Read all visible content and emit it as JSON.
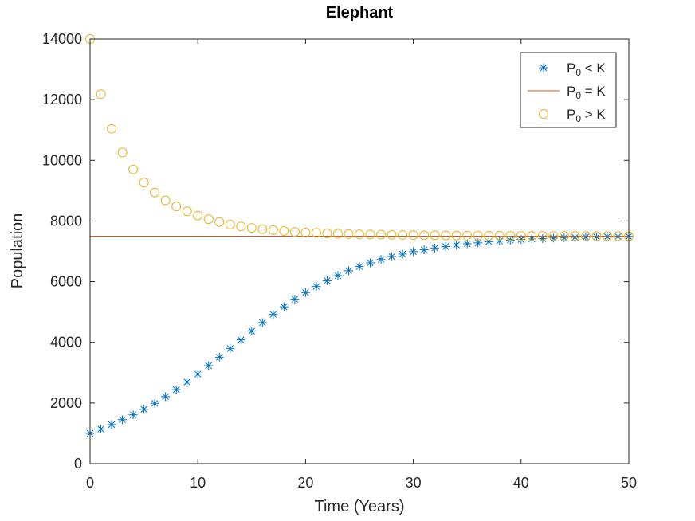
{
  "chart_data": {
    "type": "scatter",
    "title": "Elephant",
    "xlabel": "Time (Years)",
    "ylabel": "Population",
    "xlim": [
      0,
      50
    ],
    "ylim": [
      0,
      14000
    ],
    "xticks": [
      0,
      10,
      20,
      30,
      40,
      50
    ],
    "yticks": [
      0,
      2000,
      4000,
      6000,
      8000,
      10000,
      12000,
      14000
    ],
    "grid": false,
    "legend_position": "top-right",
    "series": [
      {
        "legend_main": "P",
        "legend_sub": "0",
        "legend_rest": " < K",
        "marker": "asterisk",
        "color": "#0072BD",
        "x": [
          0,
          1,
          2,
          3,
          4,
          5,
          6,
          7,
          8,
          9,
          10,
          11,
          12,
          13,
          14,
          15,
          16,
          17,
          18,
          19,
          20,
          21,
          22,
          23,
          24,
          25,
          26,
          27,
          28,
          29,
          30,
          31,
          32,
          33,
          34,
          35,
          36,
          37,
          38,
          39,
          40,
          41,
          42,
          43,
          44,
          45,
          46,
          47,
          48,
          49,
          50
        ],
        "y": [
          1000,
          1140,
          1290,
          1450,
          1610,
          1790,
          1990,
          2210,
          2440,
          2690,
          2950,
          3230,
          3510,
          3800,
          4080,
          4370,
          4650,
          4920,
          5170,
          5420,
          5640,
          5840,
          6030,
          6200,
          6360,
          6500,
          6620,
          6730,
          6830,
          6910,
          6990,
          7050,
          7110,
          7160,
          7210,
          7250,
          7280,
          7320,
          7340,
          7370,
          7390,
          7410,
          7420,
          7440,
          7450,
          7460,
          7470,
          7475,
          7480,
          7485,
          7490
        ]
      },
      {
        "legend_main": "P",
        "legend_sub": "0",
        "legend_rest": " = K",
        "marker": "line",
        "color": "#D95319",
        "x": [
          0,
          50
        ],
        "y": [
          7500,
          7500
        ]
      },
      {
        "legend_main": "P",
        "legend_sub": "0",
        "legend_rest": " > K",
        "marker": "circle",
        "color": "#EDB120",
        "x": [
          0,
          1,
          2,
          3,
          4,
          5,
          6,
          7,
          8,
          9,
          10,
          11,
          12,
          13,
          14,
          15,
          16,
          17,
          18,
          19,
          20,
          21,
          22,
          23,
          24,
          25,
          26,
          27,
          28,
          29,
          30,
          31,
          32,
          33,
          34,
          35,
          36,
          37,
          38,
          39,
          40,
          41,
          42,
          43,
          44,
          45,
          46,
          47,
          48,
          49,
          50
        ],
        "y": [
          14000,
          12180,
          11040,
          10260,
          9700,
          9270,
          8940,
          8680,
          8480,
          8320,
          8180,
          8060,
          7970,
          7880,
          7820,
          7770,
          7730,
          7700,
          7670,
          7640,
          7620,
          7610,
          7590,
          7580,
          7570,
          7560,
          7555,
          7550,
          7545,
          7540,
          7535,
          7530,
          7528,
          7525,
          7522,
          7520,
          7518,
          7516,
          7514,
          7512,
          7510,
          7509,
          7508,
          7507,
          7506,
          7505,
          7504,
          7503,
          7502,
          7501,
          7500
        ]
      }
    ]
  }
}
